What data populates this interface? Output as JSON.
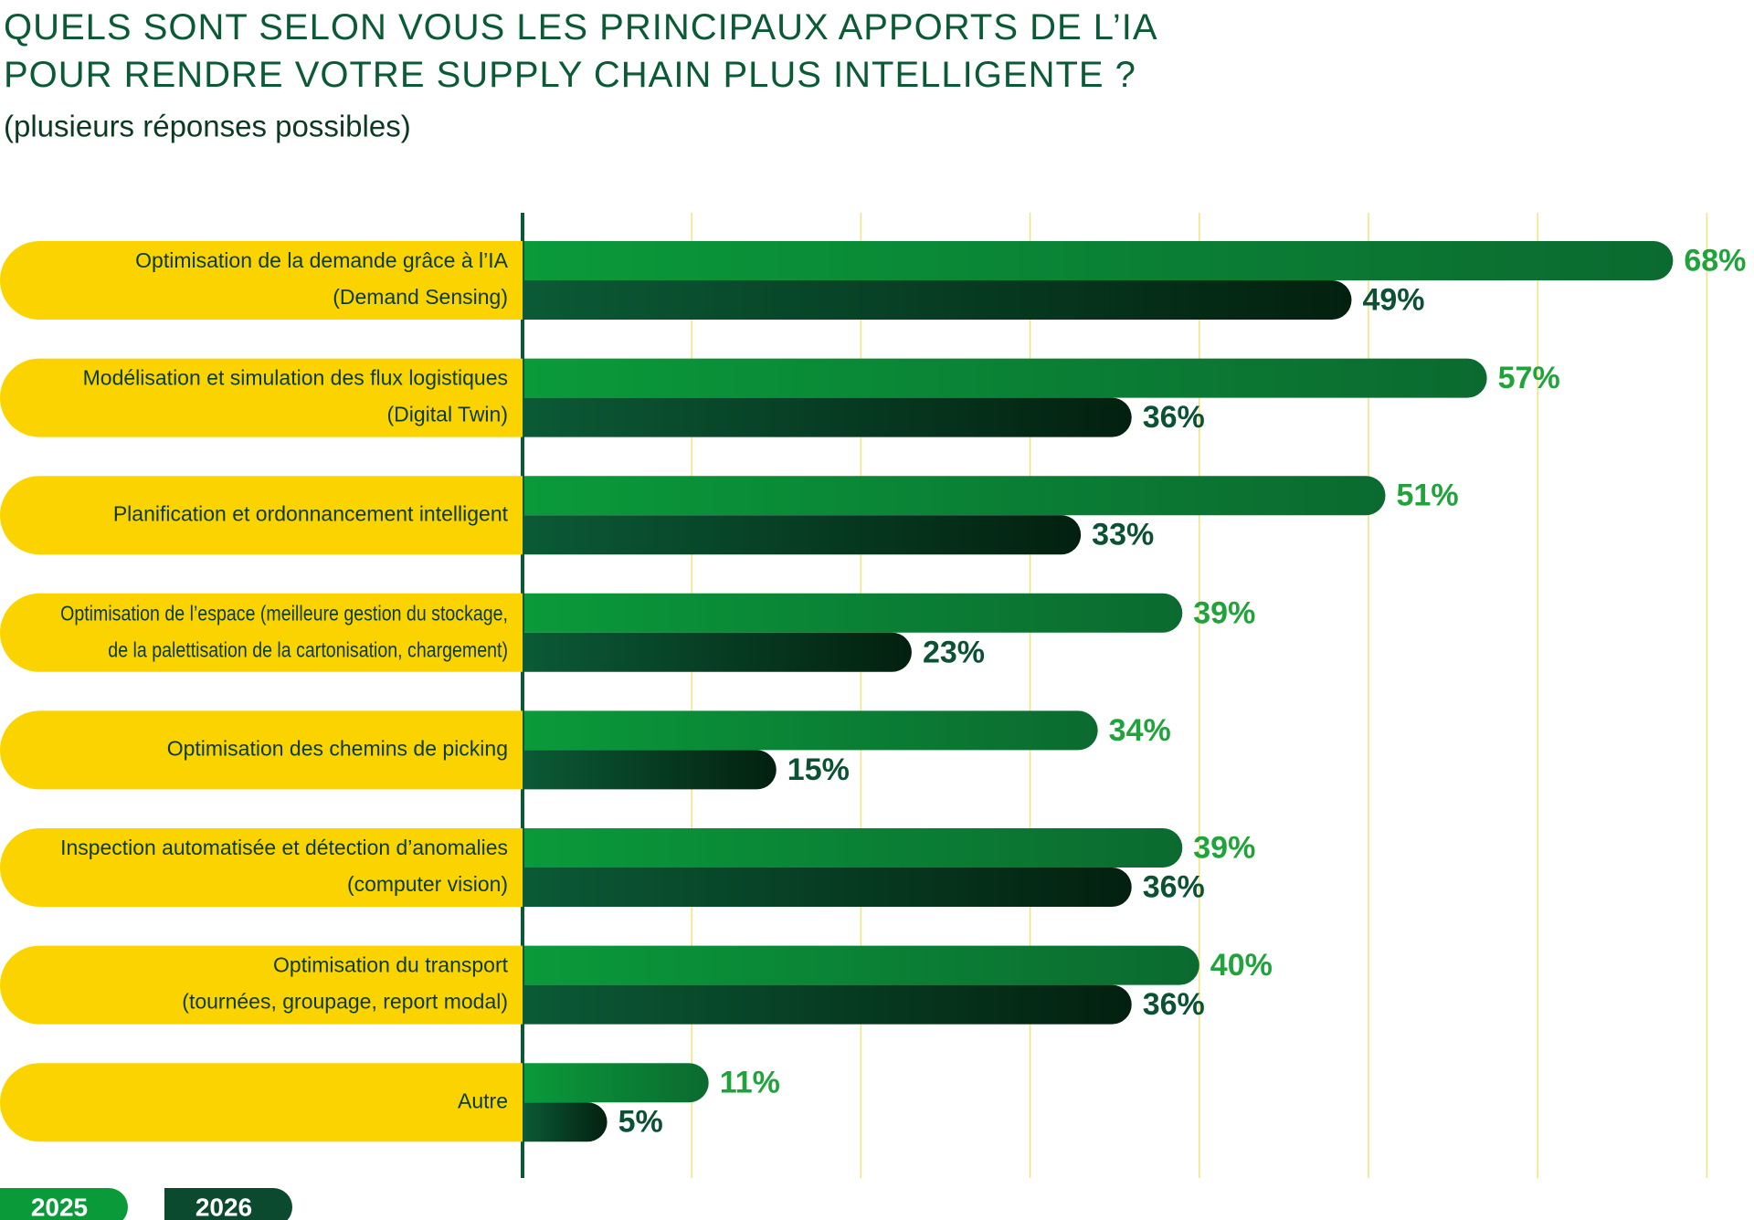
{
  "chart_data": {
    "type": "hbar",
    "title": "QUELS SONT SELON VOUS LES PRINCIPAUX APPORTS DE L’IA\nPOUR RENDRE VOTRE SUPPLY CHAIN PLUS INTELLIGENTE ?",
    "subtitle": "(plusieurs réponses possibles)",
    "categories": [
      "Optimisation de la demande grâce à l’IA\n(Demand Sensing)",
      "Modélisation et simulation des flux logistiques\n(Digital Twin)",
      "Planification et ordonnancement intelligent",
      "Optimisation de l’espace (meilleure gestion du stockage,\nde la palettisation de la cartonisation, chargement)",
      "Optimisation des chemins de picking",
      "Inspection automatisée et détection d’anomalies\n(computer vision)",
      "Optimisation du transport\n(tournées, groupage, report modal)",
      "Autre"
    ],
    "series": [
      {
        "name": "2025",
        "color": "#0a9a3a",
        "values": [
          68,
          57,
          51,
          39,
          34,
          39,
          40,
          11
        ],
        "value_labels": [
          "68%",
          "57%",
          "51%",
          "39%",
          "34%",
          "39%",
          "40%",
          "11%"
        ]
      },
      {
        "name": "2026",
        "color": "#0b5234",
        "values": [
          49,
          36,
          33,
          23,
          15,
          36,
          36,
          5
        ],
        "value_labels": [
          "49%",
          "36%",
          "33%",
          "23%",
          "15%",
          "36%",
          "36%",
          "5%"
        ]
      }
    ],
    "xlim": [
      0,
      70
    ],
    "xticks": [
      0,
      10,
      20,
      30,
      40,
      50,
      60,
      70
    ],
    "grid": true
  }
}
